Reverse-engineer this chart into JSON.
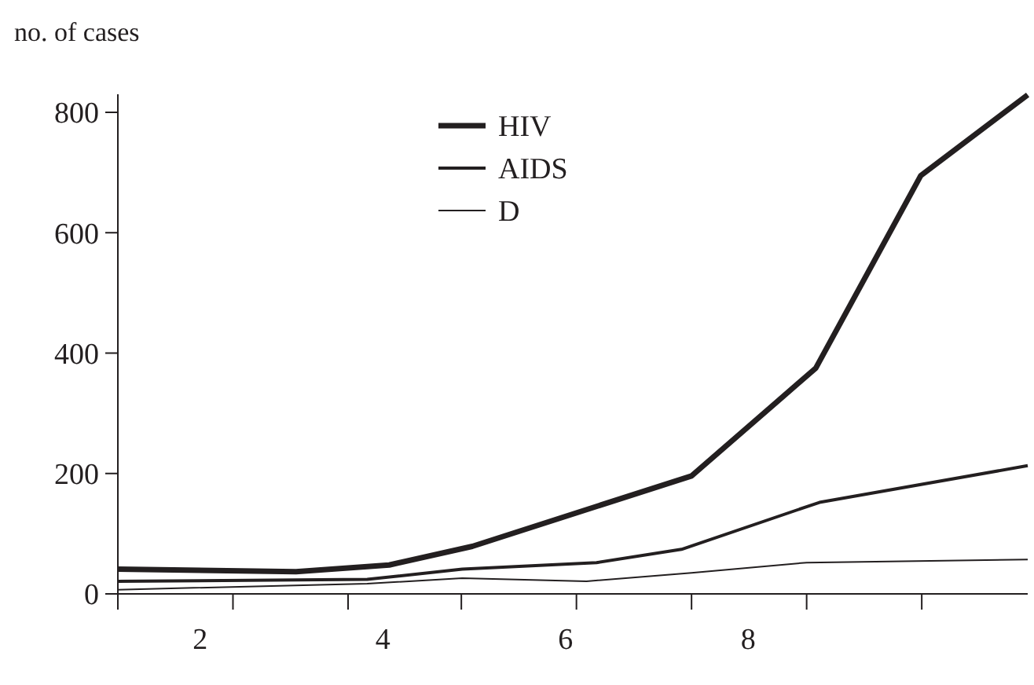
{
  "chart_data": {
    "type": "line",
    "ylabel": "no. of cases",
    "xlim": [
      1.1,
      11.06
    ],
    "xticks": [
      {
        "value": 1.1,
        "label": null
      },
      2,
      {
        "value": 2.36,
        "label": null
      },
      {
        "value": 3.62,
        "label": null
      },
      4,
      {
        "value": 4.86,
        "label": null
      },
      6,
      {
        "value": 6.12,
        "label": null
      },
      {
        "value": 7.38,
        "label": null
      },
      8,
      {
        "value": 8.64,
        "label": null
      },
      {
        "value": 9.9,
        "label": null
      }
    ],
    "ylim": [
      0,
      830
    ],
    "yticks": [
      0,
      200,
      400,
      600,
      800
    ],
    "grid": false,
    "legend": "top",
    "marker": "none",
    "line_style": "solid",
    "series": [
      {
        "name": "HIV",
        "color": "#231f20",
        "x": [
          1.1,
          3.05,
          4.07,
          4.98,
          7.38,
          8.74,
          9.89,
          11.06
        ],
        "values": [
          41,
          37,
          48,
          79,
          196,
          375,
          695,
          829
        ]
      },
      {
        "name": "AIDS",
        "color": "#231f20",
        "x": [
          1.1,
          3.83,
          4.87,
          6.34,
          7.27,
          8.78,
          11.06
        ],
        "values": [
          21,
          24,
          41,
          52,
          74,
          152,
          213
        ]
      },
      {
        "name": "D",
        "color": "#231f20",
        "x": [
          1.1,
          3.83,
          4.87,
          6.23,
          7.38,
          8.64,
          11.06
        ],
        "values": [
          7,
          17,
          26,
          21,
          35,
          52,
          57
        ]
      }
    ]
  }
}
